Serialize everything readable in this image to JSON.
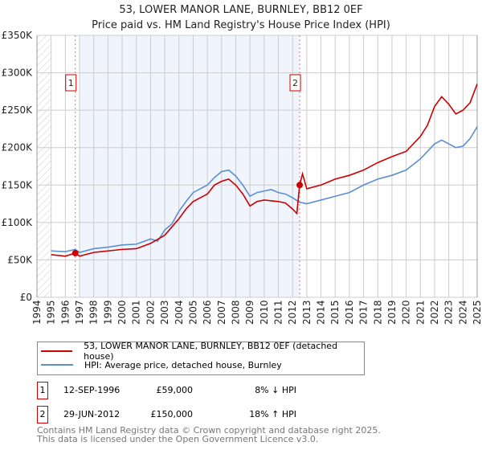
{
  "chart_data": {
    "type": "line",
    "title": "53, LOWER MANOR LANE, BURNLEY, BB12 0EF",
    "subtitle": "Price paid vs. HM Land Registry's House Price Index (HPI)",
    "xlim": [
      1994,
      2025
    ],
    "ylim": [
      0,
      350000
    ],
    "yticks": [
      {
        "v": 0,
        "label": "£0"
      },
      {
        "v": 50000,
        "label": "£50K"
      },
      {
        "v": 100000,
        "label": "£100K"
      },
      {
        "v": 150000,
        "label": "£150K"
      },
      {
        "v": 200000,
        "label": "£200K"
      },
      {
        "v": 250000,
        "label": "£250K"
      },
      {
        "v": 300000,
        "label": "£300K"
      },
      {
        "v": 350000,
        "label": "£350K"
      }
    ],
    "xticks": [
      "1994",
      "1995",
      "1996",
      "1997",
      "1998",
      "1999",
      "2000",
      "2001",
      "2002",
      "2003",
      "2004",
      "2005",
      "2006",
      "2007",
      "2008",
      "2009",
      "2010",
      "2011",
      "2012",
      "2013",
      "2014",
      "2015",
      "2016",
      "2017",
      "2018",
      "2019",
      "2020",
      "2021",
      "2022",
      "2023",
      "2024",
      "2025"
    ],
    "grid": true,
    "series": [
      {
        "name": "53, LOWER MANOR LANE, BURNLEY, BB12 0EF (detached house)",
        "color": "#cc0000",
        "x": [
          1995,
          1996,
          1996.7,
          1997,
          1998,
          1999,
          2000,
          2001,
          2002,
          2003,
          2004,
          2004.5,
          2005,
          2006,
          2006.5,
          2007,
          2007.5,
          2008,
          2008.5,
          2009,
          2009.5,
          2010,
          2011,
          2011.5,
          2012,
          2012.3,
          2012.5,
          2012.7,
          2013,
          2014,
          2015,
          2016,
          2017,
          2018,
          2019,
          2020,
          2021,
          2021.5,
          2022,
          2022.5,
          2023,
          2023.5,
          2024,
          2024.5,
          2025
        ],
        "y": [
          57000,
          55000,
          59000,
          55000,
          60000,
          62000,
          64000,
          65000,
          72000,
          83000,
          105000,
          118000,
          128000,
          138000,
          150000,
          155000,
          158000,
          150000,
          138000,
          122000,
          128000,
          130000,
          128000,
          126000,
          118000,
          112000,
          150000,
          165000,
          145000,
          150000,
          158000,
          163000,
          170000,
          180000,
          188000,
          195000,
          215000,
          230000,
          255000,
          268000,
          258000,
          245000,
          250000,
          260000,
          285000
        ]
      },
      {
        "name": "HPI: Average price, detached house, Burnley",
        "color": "#5b8fd0",
        "x": [
          1995,
          1996,
          1996.7,
          1997,
          1998,
          1999,
          2000,
          2001,
          2002,
          2002.5,
          2003,
          2003.5,
          2004,
          2004.5,
          2005,
          2005.5,
          2006,
          2006.5,
          2007,
          2007.5,
          2008,
          2008.5,
          2009,
          2009.5,
          2010,
          2010.5,
          2011,
          2011.5,
          2012,
          2012.5,
          2013,
          2014,
          2015,
          2016,
          2017,
          2018,
          2019,
          2020,
          2021,
          2022,
          2022.5,
          2023,
          2023.5,
          2024,
          2024.5,
          2025
        ],
        "y": [
          62000,
          61000,
          64000,
          60000,
          65000,
          67000,
          70000,
          71000,
          78000,
          75000,
          90000,
          98000,
          115000,
          128000,
          140000,
          145000,
          150000,
          160000,
          168000,
          170000,
          162000,
          150000,
          135000,
          140000,
          142000,
          144000,
          140000,
          138000,
          133000,
          127000,
          125000,
          130000,
          135000,
          140000,
          150000,
          158000,
          163000,
          170000,
          185000,
          205000,
          210000,
          205000,
          200000,
          202000,
          212000,
          228000
        ]
      }
    ],
    "sales": [
      {
        "id": "1",
        "date": "12-SEP-1996",
        "x": 1996.7,
        "price": 59000,
        "price_label": "£59,000",
        "hpi": "8% ↓ HPI"
      },
      {
        "id": "2",
        "date": "29-JUN-2012",
        "x": 2012.5,
        "price": 150000,
        "price_label": "£150,000",
        "hpi": "18% ↑ HPI"
      }
    ],
    "legend_position": "below"
  },
  "footer": {
    "line1": "Contains HM Land Registry data © Crown copyright and database right 2025.",
    "line2": "This data is licensed under the Open Government Licence v3.0."
  }
}
